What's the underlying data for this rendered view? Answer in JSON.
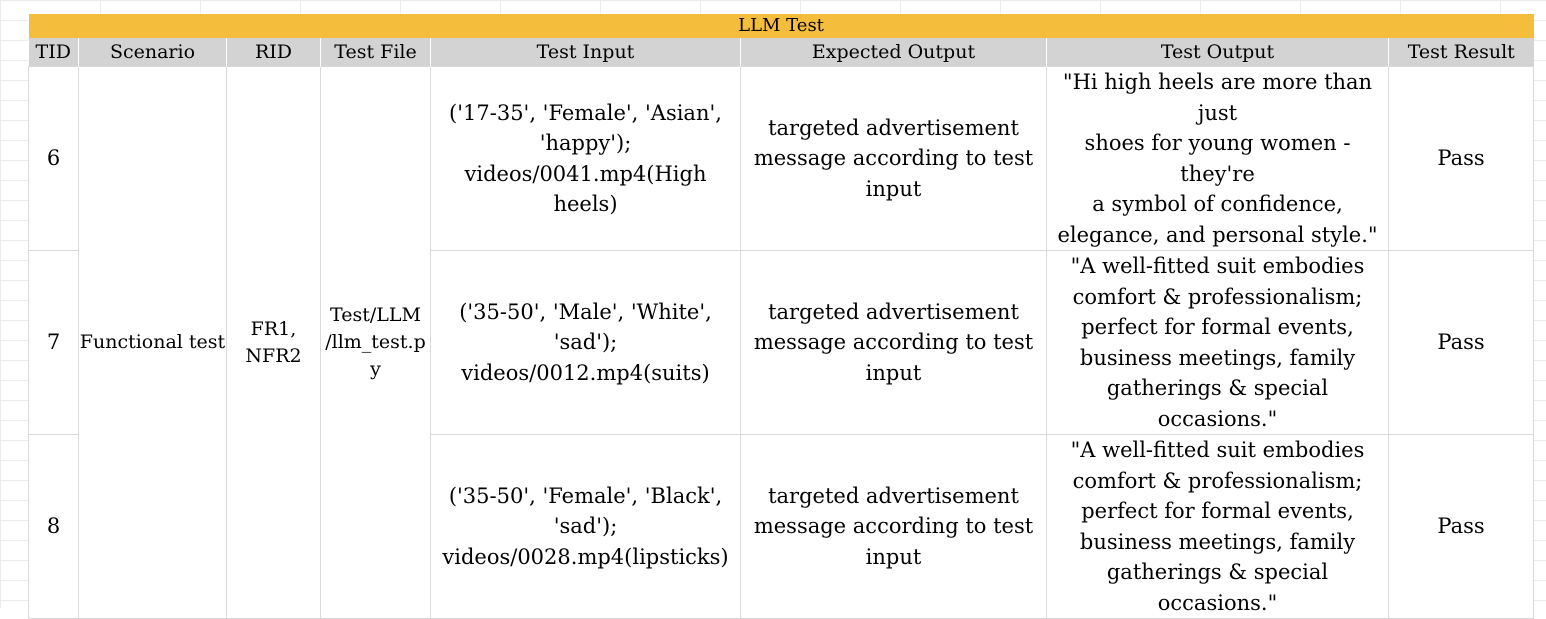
{
  "sheet": {
    "title": "LLM Test",
    "headers": [
      "TID",
      "Scenario",
      "RID",
      "Test File",
      "Test Input",
      "Expected Output",
      "Test Output",
      "Test Result"
    ],
    "scenario": "Functional test",
    "rid": "FR1,\nNFR2",
    "test_file": "Test/LLM\n/llm_test.p\ny",
    "rows": [
      {
        "tid": "6",
        "test_input": "('17-35', 'Female', 'Asian',\n'happy');\nvideos/0041.mp4(High heels)",
        "expected_output": "targeted advertisement\nmessage according to test\ninput",
        "test_output": "\"Hi high heels are more than just\nshoes for young women - they're\na symbol of confidence,\nelegance, and personal style.\"",
        "test_result": "Pass"
      },
      {
        "tid": "7",
        "test_input": "('35-50', 'Male', 'White',\n'sad');\nvideos/0012.mp4(suits)",
        "expected_output": "targeted advertisement\nmessage according to test\ninput",
        "test_output": "\"A well-fitted suit embodies\ncomfort & professionalism;\nperfect for formal events,\nbusiness meetings, family\ngatherings & special occasions.\"",
        "test_result": "Pass"
      },
      {
        "tid": "8",
        "test_input": "('35-50', 'Female', 'Black',\n'sad');\nvideos/0028.mp4(lipsticks)",
        "expected_output": "targeted advertisement\nmessage according to test\ninput",
        "test_output": "\"A well-fitted suit embodies\ncomfort & professionalism;\nperfect for formal events,\nbusiness meetings, family\ngatherings & special occasions.\"",
        "test_result": "Pass"
      }
    ]
  },
  "colors": {
    "title_bar": "#f4bd3c",
    "header_bar": "#d3d3d3",
    "gridline": "#d9d9d9"
  }
}
